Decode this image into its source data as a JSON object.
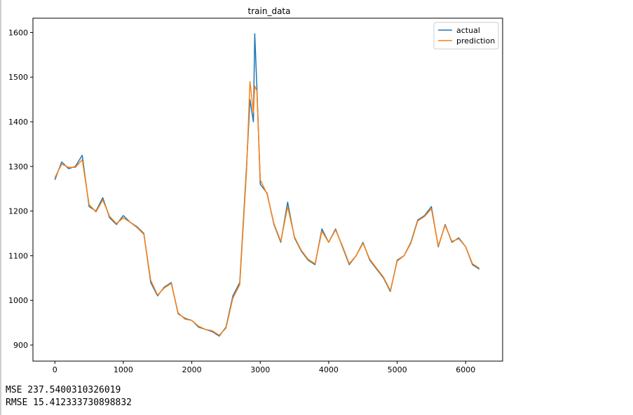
{
  "chart_data": {
    "type": "line",
    "title": "train_data",
    "x": [
      0,
      100,
      200,
      300,
      400,
      500,
      600,
      700,
      800,
      900,
      1000,
      1100,
      1200,
      1300,
      1400,
      1500,
      1600,
      1700,
      1800,
      1900,
      2000,
      2100,
      2200,
      2300,
      2400,
      2500,
      2600,
      2700,
      2800,
      2850,
      2900,
      2920,
      2950,
      3000,
      3100,
      3200,
      3300,
      3400,
      3500,
      3600,
      3700,
      3800,
      3900,
      4000,
      4100,
      4200,
      4300,
      4400,
      4500,
      4600,
      4700,
      4800,
      4900,
      5000,
      5100,
      5200,
      5300,
      5400,
      5500,
      5600,
      5700,
      5800,
      5900,
      6000,
      6100,
      6200
    ],
    "series": [
      {
        "name": "actual",
        "color": "#1f77b4",
        "values": [
          1270,
          1310,
          1295,
          1300,
          1325,
          1210,
          1200,
          1230,
          1185,
          1170,
          1190,
          1175,
          1165,
          1150,
          1040,
          1010,
          1030,
          1040,
          970,
          960,
          955,
          940,
          935,
          930,
          920,
          940,
          1010,
          1040,
          1300,
          1450,
          1400,
          1597,
          1480,
          1260,
          1240,
          1170,
          1130,
          1220,
          1140,
          1110,
          1090,
          1080,
          1160,
          1130,
          1160,
          1120,
          1080,
          1100,
          1130,
          1090,
          1070,
          1050,
          1020,
          1090,
          1100,
          1130,
          1180,
          1190,
          1210,
          1120,
          1170,
          1130,
          1140,
          1120,
          1080,
          1070
        ]
      },
      {
        "name": "prediction",
        "color": "#ff7f0e",
        "values": [
          1275,
          1305,
          1298,
          1298,
          1315,
          1215,
          1198,
          1225,
          1188,
          1172,
          1185,
          1175,
          1163,
          1148,
          1045,
          1012,
          1028,
          1038,
          972,
          958,
          955,
          942,
          935,
          932,
          922,
          938,
          1005,
          1035,
          1290,
          1490,
          1420,
          1480,
          1470,
          1270,
          1238,
          1172,
          1132,
          1210,
          1142,
          1112,
          1092,
          1082,
          1155,
          1130,
          1158,
          1122,
          1082,
          1100,
          1128,
          1092,
          1072,
          1052,
          1022,
          1088,
          1100,
          1128,
          1178,
          1188,
          1205,
          1122,
          1168,
          1132,
          1138,
          1120,
          1082,
          1072
        ]
      }
    ],
    "xlim": [
      -320,
      6540
    ],
    "xticks": [
      0,
      1000,
      2000,
      3000,
      4000,
      5000,
      6000
    ],
    "ylim": [
      864,
      1632
    ],
    "yticks": [
      900,
      1000,
      1100,
      1200,
      1300,
      1400,
      1500,
      1600
    ],
    "legend": "upper right",
    "grid": false
  },
  "output": [
    "MSE 237.5400310326019",
    "RMSE 15.412333730898832"
  ]
}
